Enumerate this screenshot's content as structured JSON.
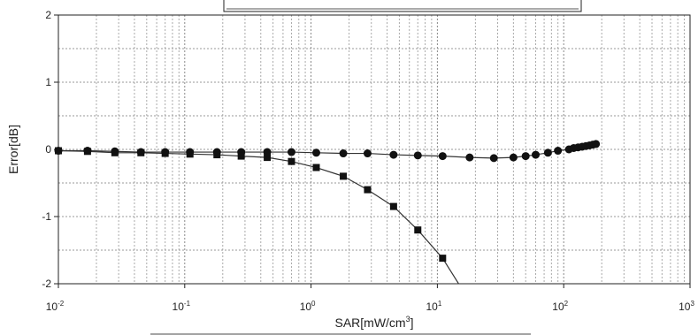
{
  "chart_data": {
    "type": "scatter",
    "xlabel": "SAR[mW/cm",
    "xlabel_sup": "3",
    "xlabel_suffix": "]",
    "ylabel": "Error[dB]",
    "x_scale": "log",
    "xlim": [
      0.01,
      1000
    ],
    "ylim": [
      -2,
      2
    ],
    "grid": true,
    "x_ticks": [
      {
        "base": "10",
        "exp": "-2"
      },
      {
        "base": "10",
        "exp": "-1"
      },
      {
        "base": "10",
        "exp": "0"
      },
      {
        "base": "10",
        "exp": "1"
      },
      {
        "base": "10",
        "exp": "2"
      },
      {
        "base": "10",
        "exp": "3"
      }
    ],
    "y_ticks": [
      "2",
      "1",
      "0",
      "-1",
      "-2"
    ],
    "series": [
      {
        "marker": "circle",
        "x": [
          0.01,
          0.017,
          0.028,
          0.045,
          0.07,
          0.11,
          0.18,
          0.28,
          0.45,
          0.7,
          1.1,
          1.8,
          2.8,
          4.5,
          7,
          11,
          18,
          28,
          40,
          50,
          60,
          75,
          90,
          110,
          120,
          130,
          140,
          150,
          160,
          170,
          180
        ],
        "y": [
          -0.02,
          -0.02,
          -0.03,
          -0.04,
          -0.04,
          -0.04,
          -0.04,
          -0.04,
          -0.04,
          -0.04,
          -0.05,
          -0.06,
          -0.06,
          -0.08,
          -0.09,
          -0.1,
          -0.12,
          -0.13,
          -0.12,
          -0.1,
          -0.08,
          -0.05,
          -0.02,
          0.0,
          0.02,
          0.03,
          0.04,
          0.05,
          0.06,
          0.07,
          0.08
        ]
      },
      {
        "marker": "square",
        "x": [
          0.01,
          0.017,
          0.028,
          0.045,
          0.07,
          0.11,
          0.18,
          0.28,
          0.45,
          0.7,
          1.1,
          1.8,
          2.8,
          4.5,
          7,
          11
        ],
        "y": [
          -0.02,
          -0.03,
          -0.05,
          -0.05,
          -0.06,
          -0.07,
          -0.08,
          -0.1,
          -0.12,
          -0.18,
          -0.27,
          -0.4,
          -0.6,
          -0.85,
          -1.2,
          -1.62
        ]
      }
    ]
  }
}
